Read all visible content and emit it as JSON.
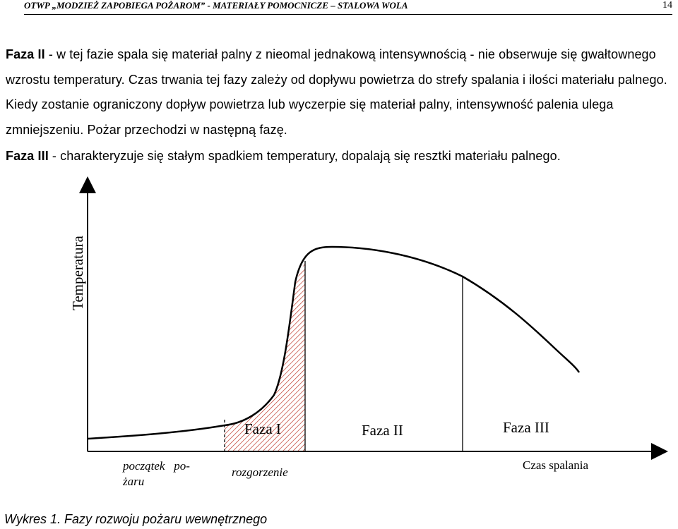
{
  "header": {
    "title": "OTWP „MODZIEŻ ZAPOBIEGA POŻAROM” - MATERIAŁY POMOCNICZE – STALOWA WOLA",
    "page_number": "14"
  },
  "paragraphs": [
    {
      "lead": "Faza II",
      "text": " - w tej fazie spala się materiał palny z nieomal jednakową intensywnością - nie obserwuje się gwałtownego wzrostu temperatury. Czas trwania tej fazy zależy od dopływu powietrza do strefy spalania i ilości materiału palnego. Kiedy zostanie ograniczony dopływ powietrza lub wyczerpie się materiał palny, intensywność palenia ulega zmniejszeniu. Pożar przechodzi w następną fazę."
    },
    {
      "lead": "Faza III",
      "text": " - charakteryzuje się stałym spadkiem temperatury, dopalają się resztki materiału palnego."
    }
  ],
  "figure": {
    "y_axis_label": "Temperatura",
    "x_axis_label": "Czas spalania",
    "phase_labels": [
      "Faza I",
      "Faza II",
      "Faza III"
    ],
    "start_label": "początek   po-\nżaru",
    "ignition_label": "rozgorzenie",
    "hatch_color": "#c0392b"
  },
  "caption": "Wykres 1. Fazy rozwoju pożaru wewnętrznego"
}
